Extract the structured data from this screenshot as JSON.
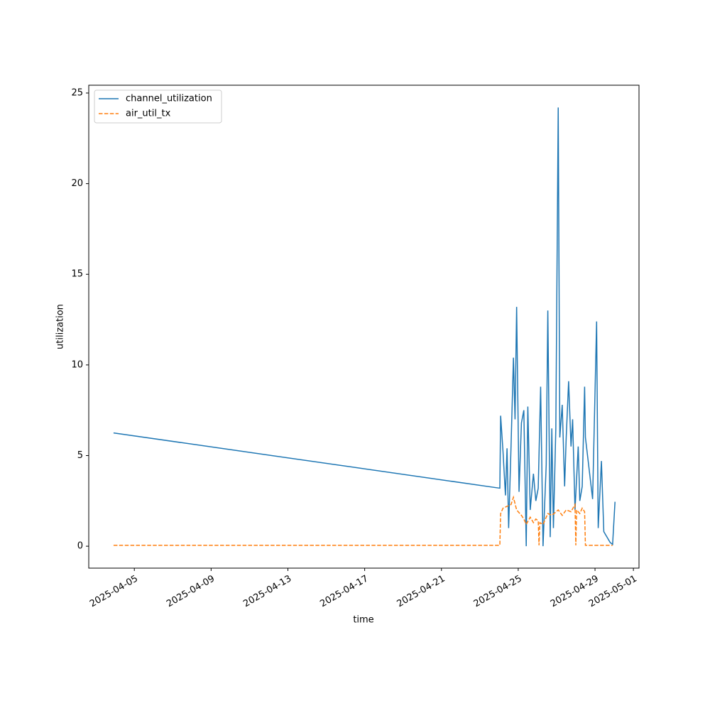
{
  "chart_data": {
    "type": "line",
    "xlabel": "time",
    "ylabel": "utilization",
    "xlim": [
      "2025-04-02T15:00",
      "2025-05-01T07:00"
    ],
    "xticks": [
      "2025-04-05",
      "2025-04-09",
      "2025-04-13",
      "2025-04-17",
      "2025-04-21",
      "2025-04-25",
      "2025-04-29",
      "2025-05-01"
    ],
    "ylim": [
      -1.21,
      25.43
    ],
    "yticks": [
      0,
      5,
      10,
      15,
      20,
      25
    ],
    "legend": "upper left",
    "series": [
      {
        "name": "channel_utilization",
        "color": "#1f77b4",
        "dash": false,
        "x": [
          "2025-04-03T22:00",
          "2025-04-24T01:00",
          "2025-04-24T02:00",
          "2025-04-24T05:00",
          "2025-04-24T08:00",
          "2025-04-24T10:00",
          "2025-04-24T12:00",
          "2025-04-24T15:00",
          "2025-04-24T18:00",
          "2025-04-24T20:00",
          "2025-04-24T22:00",
          "2025-04-25T01:00",
          "2025-04-25T04:00",
          "2025-04-25T07:00",
          "2025-04-25T10:00",
          "2025-04-25T12:00",
          "2025-04-25T15:00",
          "2025-04-25T19:00",
          "2025-04-25T22:00",
          "2025-04-26T01:00",
          "2025-04-26T04:00",
          "2025-04-26T07:00",
          "2025-04-26T11:00",
          "2025-04-26T13:00",
          "2025-04-26T16:00",
          "2025-04-26T18:00",
          "2025-04-26T20:00",
          "2025-04-26T23:00",
          "2025-04-27T02:00",
          "2025-04-27T04:00",
          "2025-04-27T07:00",
          "2025-04-27T10:00",
          "2025-04-27T12:00",
          "2025-04-27T15:00",
          "2025-04-27T18:00",
          "2025-04-27T20:00",
          "2025-04-27T23:00",
          "2025-04-28T03:00",
          "2025-04-28T05:00",
          "2025-04-28T08:00",
          "2025-04-28T11:00",
          "2025-04-28T12:00",
          "2025-04-28T21:00",
          "2025-04-29T02:00",
          "2025-04-29T04:00",
          "2025-04-29T08:00",
          "2025-04-29T11:00",
          "2025-04-29T19:00",
          "2025-04-29T22:00",
          "2025-04-30T01:00"
        ],
        "values": [
          6.25,
          3.2,
          7.2,
          5.2,
          2.8,
          5.4,
          1.0,
          5.5,
          10.4,
          7.0,
          13.2,
          3.0,
          6.8,
          7.5,
          0.0,
          7.7,
          2.0,
          4.0,
          2.5,
          3.2,
          8.8,
          0.0,
          4.5,
          13.0,
          0.5,
          6.5,
          1.0,
          6.5,
          24.2,
          6.0,
          7.8,
          3.3,
          6.0,
          9.1,
          5.5,
          7.0,
          2.0,
          5.5,
          2.5,
          3.3,
          8.8,
          6.0,
          2.6,
          12.4,
          1.0,
          4.7,
          0.8,
          0.2,
          0.1,
          2.45
        ]
      },
      {
        "name": "air_util_tx",
        "color": "#ff7f0e",
        "dash": true,
        "x": [
          "2025-04-03T22:00",
          "2025-04-24T01:00",
          "2025-04-24T02:00",
          "2025-04-24T05:00",
          "2025-04-24T10:00",
          "2025-04-24T15:00",
          "2025-04-24T18:00",
          "2025-04-24T22:00",
          "2025-04-25T04:00",
          "2025-04-25T07:00",
          "2025-04-25T10:00",
          "2025-04-25T15:00",
          "2025-04-25T19:00",
          "2025-04-25T22:00",
          "2025-04-26T01:00",
          "2025-04-26T02:00",
          "2025-04-26T03:00",
          "2025-04-26T07:00",
          "2025-04-26T13:00",
          "2025-04-26T18:00",
          "2025-04-27T02:00",
          "2025-04-27T07:00",
          "2025-04-27T12:00",
          "2025-04-27T18:00",
          "2025-04-27T23:00",
          "2025-04-28T00:00",
          "2025-04-28T01:00",
          "2025-04-28T05:00",
          "2025-04-28T08:00",
          "2025-04-28T11:00",
          "2025-04-28T12:00",
          "2025-04-29T22:00"
        ],
        "values": [
          0.05,
          0.05,
          1.8,
          2.1,
          2.2,
          2.3,
          2.7,
          2.0,
          1.7,
          1.5,
          1.2,
          1.6,
          1.3,
          1.5,
          1.4,
          0.05,
          1.3,
          1.2,
          1.8,
          1.7,
          2.0,
          1.7,
          2.0,
          1.9,
          2.3,
          0.05,
          2.0,
          1.8,
          2.1,
          1.9,
          0.05,
          0.05
        ]
      }
    ]
  }
}
